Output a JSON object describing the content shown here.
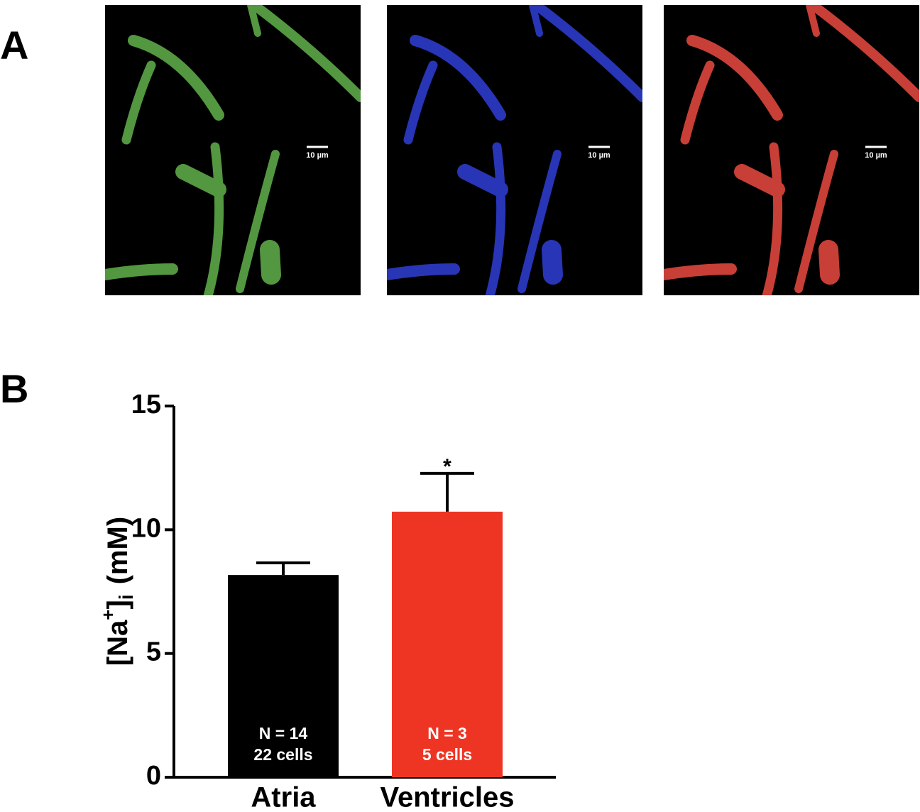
{
  "panel_labels": [
    "A",
    "B"
  ],
  "image_panels": [
    {
      "color": "#62b24c",
      "scale_bar": "10 µm"
    },
    {
      "color": "#2f3fd6",
      "scale_bar": "10 µm"
    },
    {
      "color": "#ea4a40",
      "scale_bar": "10 µm"
    }
  ],
  "chart_data": {
    "type": "bar",
    "y_label": {
      "base": "[Na",
      "sup": "+",
      "close": "]",
      "sub": "i",
      "unit": "(mM)"
    },
    "categories": [
      "Atria",
      "Ventricles"
    ],
    "values": [
      8.17,
      10.73
    ],
    "errors": [
      0.49,
      1.55
    ],
    "colors": [
      "#000000",
      "#ee3524"
    ],
    "bar_labels": [
      [
        "N = 14",
        "22 cells"
      ],
      [
        "N = 3",
        "5 cells"
      ]
    ],
    "annotations": [
      null,
      "*"
    ],
    "ylim": [
      0,
      15
    ],
    "yticks": [
      0,
      5,
      10,
      15
    ]
  }
}
